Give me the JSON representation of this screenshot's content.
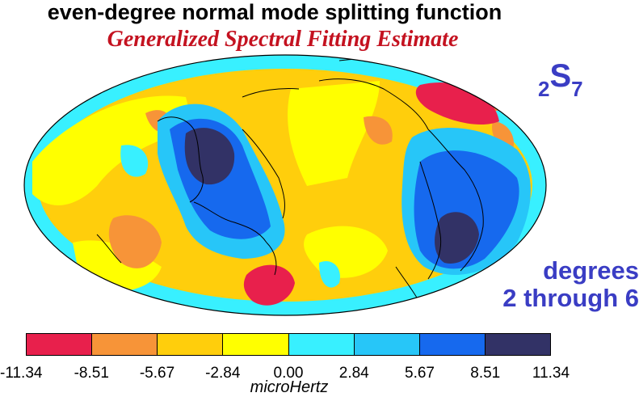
{
  "title": "even-degree normal mode splitting function",
  "subtitle": "Generalized Spectral Fitting Estimate",
  "mode_label": {
    "subscript": "2",
    "letter": "S",
    "order": "7"
  },
  "degrees_label": {
    "line1": "degrees",
    "line2": "2 through 6"
  },
  "colorbar": {
    "ticks": [
      "-11.34",
      "-8.51",
      "-5.67",
      "-2.84",
      "0.00",
      "2.84",
      "5.67",
      "8.51",
      "11.34"
    ],
    "colors": [
      "#e8204c",
      "#f79438",
      "#ffce0c",
      "#ffff00",
      "#38f0ff",
      "#27c6f8",
      "#1669ee",
      "#323266"
    ],
    "unit": "microHertz"
  },
  "map": {
    "projection": "Hammer/Mollweide-type equal area",
    "background_color": "#ffffff",
    "outline_color": "#000000"
  }
}
